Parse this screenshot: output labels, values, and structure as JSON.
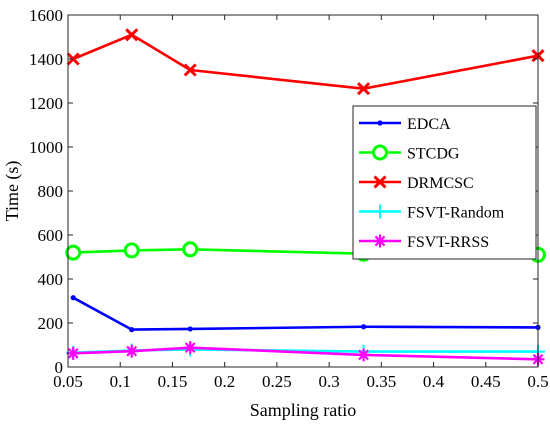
{
  "chart_data": {
    "type": "line",
    "xlabel": "Sampling ratio",
    "ylabel": "Time (s)",
    "xlim": [
      0.05,
      0.5
    ],
    "ylim": [
      0,
      1600
    ],
    "xticks": [
      "0.05",
      "0.1",
      "0.15",
      "0.2",
      "0.25",
      "0.3",
      "0.35",
      "0.4",
      "0.45",
      "0.5"
    ],
    "yticks": [
      "0",
      "200",
      "400",
      "600",
      "800",
      "1000",
      "1200",
      "1400",
      "1600"
    ],
    "grid": false,
    "legend_position": "right",
    "x": [
      0.055,
      0.111,
      0.167,
      0.333,
      0.5
    ],
    "series": [
      {
        "name": "EDCA",
        "color": "#0000ff",
        "marker": "dot",
        "values": [
          315,
          170,
          173,
          183,
          180
        ]
      },
      {
        "name": "STCDG",
        "color": "#00ff00",
        "marker": "circle",
        "values": [
          520,
          530,
          535,
          515,
          510
        ]
      },
      {
        "name": "DRMCSC",
        "color": "#ff0000",
        "marker": "x",
        "values": [
          1400,
          1510,
          1350,
          1265,
          1415
        ]
      },
      {
        "name": "FSVT-Random",
        "color": "#00ffff",
        "marker": "plus",
        "values": [
          65,
          75,
          80,
          70,
          70
        ]
      },
      {
        "name": "FSVT-RRSS",
        "color": "#ff00ff",
        "marker": "asterisk",
        "values": [
          62,
          72,
          88,
          55,
          35
        ]
      }
    ]
  }
}
